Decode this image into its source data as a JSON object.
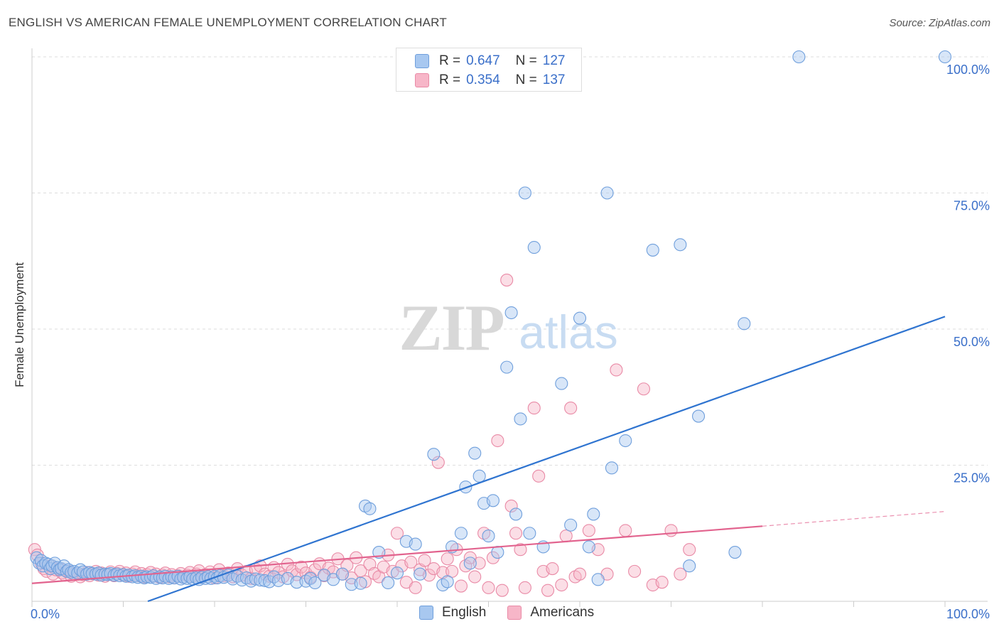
{
  "title": "ENGLISH VS AMERICAN FEMALE UNEMPLOYMENT CORRELATION CHART",
  "source": "Source: ZipAtlas.com",
  "legend_top": [
    {
      "r_label": "R =",
      "r_value": "0.647",
      "n_label": "N =",
      "n_value": "127"
    },
    {
      "r_label": "R =",
      "r_value": "0.354",
      "n_label": "N =",
      "n_value": "137"
    }
  ],
  "watermark": {
    "zip": "ZIP",
    "atlas": "atlas"
  },
  "colors": {
    "english_fill": "#a8c8f0",
    "english_stroke": "#6f9fdc",
    "english_line": "#2f74d0",
    "americans_fill": "#f7b6c8",
    "americans_stroke": "#e98aa6",
    "americans_line": "#e2638e",
    "axis_text": "#3a6fc9"
  },
  "chart_data": {
    "type": "scatter",
    "title": "ENGLISH VS AMERICAN FEMALE UNEMPLOYMENT CORRELATION CHART",
    "xlabel": "",
    "ylabel": "Female Unemployment",
    "xlim": [
      0,
      100
    ],
    "ylim": [
      0,
      100
    ],
    "x_tick_labels": [
      "0.0%",
      "100.0%"
    ],
    "y_tick_labels": [
      "25.0%",
      "50.0%",
      "75.0%",
      "100.0%"
    ],
    "y_ticks": [
      25,
      50,
      75,
      100
    ],
    "grid": "horizontal dashed",
    "legend_position": "bottom-center",
    "series": [
      {
        "name": "English",
        "r": 0.647,
        "n": 127,
        "trend": {
          "x": [
            0,
            100
          ],
          "y": [
            -7.6,
            52.3
          ]
        },
        "points": [
          [
            0.5,
            8
          ],
          [
            0.8,
            7
          ],
          [
            1,
            7.5
          ],
          [
            1.2,
            6.5
          ],
          [
            1.5,
            7
          ],
          [
            1.8,
            6.8
          ],
          [
            2,
            6
          ],
          [
            2.2,
            6.5
          ],
          [
            2.5,
            7
          ],
          [
            2.8,
            6.2
          ],
          [
            3,
            5.8
          ],
          [
            3.2,
            6
          ],
          [
            3.5,
            6.5
          ],
          [
            3.8,
            5.5
          ],
          [
            4,
            5.8
          ],
          [
            4.3,
            5.3
          ],
          [
            4.6,
            5.5
          ],
          [
            5,
            5.2
          ],
          [
            5.3,
            5.8
          ],
          [
            5.6,
            5.4
          ],
          [
            6,
            5
          ],
          [
            6.3,
            5.3
          ],
          [
            6.6,
            5.1
          ],
          [
            7,
            5
          ],
          [
            7.3,
            5.2
          ],
          [
            7.6,
            4.8
          ],
          [
            8,
            5
          ],
          [
            8.3,
            4.9
          ],
          [
            8.6,
            5.1
          ],
          [
            9,
            4.8
          ],
          [
            9.3,
            5
          ],
          [
            9.6,
            4.7
          ],
          [
            10,
            4.9
          ],
          [
            10.3,
            4.6
          ],
          [
            10.6,
            4.8
          ],
          [
            11,
            4.5
          ],
          [
            11.3,
            4.7
          ],
          [
            11.6,
            4.4
          ],
          [
            12,
            4.6
          ],
          [
            12.3,
            4.3
          ],
          [
            12.6,
            4.5
          ],
          [
            13,
            4.4
          ],
          [
            13.3,
            4.7
          ],
          [
            13.6,
            4.2
          ],
          [
            14,
            4.5
          ],
          [
            14.3,
            4.3
          ],
          [
            14.6,
            4.6
          ],
          [
            15,
            4.2
          ],
          [
            15.3,
            4.5
          ],
          [
            15.6,
            4.3
          ],
          [
            16,
            4.6
          ],
          [
            16.3,
            4.1
          ],
          [
            16.6,
            4.4
          ],
          [
            17,
            4.2
          ],
          [
            17.3,
            4.5
          ],
          [
            17.6,
            4.1
          ],
          [
            18,
            4.3
          ],
          [
            18.3,
            4
          ],
          [
            18.6,
            4.4
          ],
          [
            19,
            4.2
          ],
          [
            19.3,
            4.5
          ],
          [
            19.6,
            4.2
          ],
          [
            20,
            4.6
          ],
          [
            20.3,
            4.3
          ],
          [
            20.6,
            4.7
          ],
          [
            21,
            4.4
          ],
          [
            21.5,
            4.8
          ],
          [
            22,
            4.1
          ],
          [
            22.5,
            4.6
          ],
          [
            23,
            3.9
          ],
          [
            23.5,
            4.3
          ],
          [
            24,
            3.7
          ],
          [
            24.5,
            4.1
          ],
          [
            25,
            3.9
          ],
          [
            25.5,
            3.8
          ],
          [
            26,
            3.6
          ],
          [
            26.5,
            4.5
          ],
          [
            27,
            3.8
          ],
          [
            28,
            4.2
          ],
          [
            29,
            3.5
          ],
          [
            30,
            3.7
          ],
          [
            30.5,
            4.2
          ],
          [
            31,
            3.4
          ],
          [
            32,
            4.8
          ],
          [
            33,
            4
          ],
          [
            34,
            5
          ],
          [
            35,
            3.1
          ],
          [
            36,
            3.3
          ],
          [
            36.5,
            17.5
          ],
          [
            37,
            17
          ],
          [
            38,
            9
          ],
          [
            39,
            3.4
          ],
          [
            40,
            5.2
          ],
          [
            41,
            11
          ],
          [
            42,
            10.5
          ],
          [
            42.5,
            5
          ],
          [
            44,
            27
          ],
          [
            45,
            3
          ],
          [
            45.5,
            3.6
          ],
          [
            46,
            10
          ],
          [
            47,
            12.5
          ],
          [
            47.5,
            21
          ],
          [
            48,
            7
          ],
          [
            48.5,
            27.2
          ],
          [
            49,
            23
          ],
          [
            49.5,
            18
          ],
          [
            50,
            12
          ],
          [
            50.5,
            18.5
          ],
          [
            51,
            9
          ],
          [
            52,
            43
          ],
          [
            52.5,
            53
          ],
          [
            53,
            16
          ],
          [
            53.5,
            33.5
          ],
          [
            54,
            75
          ],
          [
            54.5,
            12.5
          ],
          [
            55,
            65
          ],
          [
            56,
            10
          ],
          [
            58,
            40
          ],
          [
            59,
            14
          ],
          [
            60,
            52
          ],
          [
            61,
            10
          ],
          [
            61.5,
            16
          ],
          [
            62,
            4
          ],
          [
            63,
            75
          ],
          [
            63.5,
            24.5
          ],
          [
            65,
            29.5
          ],
          [
            68,
            64.5
          ],
          [
            71,
            65.5
          ],
          [
            72,
            6.5
          ],
          [
            73,
            34
          ],
          [
            77,
            9
          ],
          [
            78,
            51
          ],
          [
            84,
            100
          ],
          [
            100,
            100
          ]
        ]
      },
      {
        "name": "Americans",
        "r": 0.354,
        "n": 137,
        "trend": {
          "x": [
            0,
            80
          ],
          "y": [
            3.3,
            13.8
          ]
        },
        "trend_dashed": {
          "x": [
            80,
            100
          ],
          "y": [
            13.8,
            16.5
          ]
        },
        "points": [
          [
            0.3,
            9.5
          ],
          [
            0.6,
            8.5
          ],
          [
            1,
            7
          ],
          [
            1.3,
            6
          ],
          [
            1.6,
            5.5
          ],
          [
            2,
            6.5
          ],
          [
            2.3,
            5
          ],
          [
            2.6,
            5.8
          ],
          [
            3,
            6
          ],
          [
            3.3,
            5.2
          ],
          [
            3.6,
            4.8
          ],
          [
            4,
            5.5
          ],
          [
            4.3,
            4.6
          ],
          [
            4.6,
            5
          ],
          [
            5,
            5.2
          ],
          [
            5.3,
            4.5
          ],
          [
            5.6,
            4.9
          ],
          [
            6,
            5.3
          ],
          [
            6.3,
            4.7
          ],
          [
            6.6,
            5.1
          ],
          [
            7,
            5.5
          ],
          [
            7.3,
            4.8
          ],
          [
            7.6,
            5.2
          ],
          [
            8,
            4.6
          ],
          [
            8.3,
            5
          ],
          [
            8.6,
            5.4
          ],
          [
            9,
            4.7
          ],
          [
            9.3,
            5.1
          ],
          [
            9.6,
            5.5
          ],
          [
            10,
            4.8
          ],
          [
            10.3,
            5.2
          ],
          [
            10.6,
            4.6
          ],
          [
            11,
            5
          ],
          [
            11.3,
            5.4
          ],
          [
            11.6,
            4.7
          ],
          [
            12,
            5.1
          ],
          [
            12.3,
            4.5
          ],
          [
            12.6,
            4.9
          ],
          [
            13,
            5.3
          ],
          [
            13.3,
            4.6
          ],
          [
            13.6,
            5
          ],
          [
            14,
            4.4
          ],
          [
            14.3,
            4.8
          ],
          [
            14.6,
            5.2
          ],
          [
            15,
            4.5
          ],
          [
            15.3,
            4.9
          ],
          [
            15.6,
            4.3
          ],
          [
            16,
            4.7
          ],
          [
            16.3,
            5.1
          ],
          [
            16.6,
            4.4
          ],
          [
            17,
            4.8
          ],
          [
            17.3,
            5.3
          ],
          [
            17.6,
            4.6
          ],
          [
            18,
            5
          ],
          [
            18.3,
            5.6
          ],
          [
            18.6,
            4.5
          ],
          [
            19,
            4.9
          ],
          [
            19.5,
            5.4
          ],
          [
            20,
            4.3
          ],
          [
            20.5,
            5.8
          ],
          [
            21,
            4.7
          ],
          [
            21.5,
            5.2
          ],
          [
            22,
            4.5
          ],
          [
            22.5,
            6
          ],
          [
            23,
            4.8
          ],
          [
            23.5,
            5.5
          ],
          [
            24,
            4.2
          ],
          [
            24.5,
            5.9
          ],
          [
            25,
            6.5
          ],
          [
            25.5,
            5
          ],
          [
            26,
            4.6
          ],
          [
            26.5,
            6.2
          ],
          [
            27,
            5.3
          ],
          [
            27.5,
            4.5
          ],
          [
            28,
            6.8
          ],
          [
            28.5,
            5.6
          ],
          [
            29,
            4.9
          ],
          [
            29.5,
            6.3
          ],
          [
            30,
            5.2
          ],
          [
            30.5,
            4.4
          ],
          [
            31,
            5.8
          ],
          [
            31.5,
            6.9
          ],
          [
            32,
            4.7
          ],
          [
            32.5,
            6.1
          ],
          [
            33,
            5.4
          ],
          [
            33.5,
            7.8
          ],
          [
            34,
            5
          ],
          [
            34.5,
            6.6
          ],
          [
            35,
            4.3
          ],
          [
            35.5,
            8
          ],
          [
            36,
            5.6
          ],
          [
            36.5,
            3.6
          ],
          [
            37,
            6.8
          ],
          [
            37.5,
            5.1
          ],
          [
            38,
            4.5
          ],
          [
            38.5,
            6.3
          ],
          [
            39,
            8.5
          ],
          [
            39.5,
            5.5
          ],
          [
            40,
            12.5
          ],
          [
            40.5,
            6.5
          ],
          [
            41,
            3.5
          ],
          [
            41.5,
            7.2
          ],
          [
            42,
            2.5
          ],
          [
            42.5,
            5.8
          ],
          [
            43,
            7.5
          ],
          [
            43.5,
            4.8
          ],
          [
            44,
            6
          ],
          [
            44.5,
            25.5
          ],
          [
            45,
            5.3
          ],
          [
            45.5,
            7.8
          ],
          [
            46,
            5.5
          ],
          [
            46.5,
            9.5
          ],
          [
            47,
            2.8
          ],
          [
            47.5,
            6.5
          ],
          [
            48,
            8
          ],
          [
            48.5,
            4.5
          ],
          [
            49,
            7
          ],
          [
            49.5,
            12.5
          ],
          [
            50,
            2.5
          ],
          [
            50.5,
            8
          ],
          [
            51,
            29.5
          ],
          [
            51.5,
            2
          ],
          [
            52,
            59
          ],
          [
            52.5,
            17.5
          ],
          [
            53,
            12.5
          ],
          [
            53.5,
            9.5
          ],
          [
            54,
            2.5
          ],
          [
            55,
            35.5
          ],
          [
            55.5,
            23
          ],
          [
            56,
            5.5
          ],
          [
            56.5,
            2
          ],
          [
            57,
            6
          ],
          [
            58,
            3
          ],
          [
            58.5,
            12
          ],
          [
            59,
            35.5
          ],
          [
            59.5,
            4.5
          ],
          [
            60,
            5
          ],
          [
            61,
            13
          ],
          [
            62,
            9.5
          ],
          [
            63,
            5
          ],
          [
            64,
            42.5
          ],
          [
            65,
            13
          ],
          [
            66,
            5.5
          ],
          [
            67,
            39
          ],
          [
            68,
            3
          ],
          [
            69,
            3.5
          ],
          [
            70,
            13
          ],
          [
            71,
            5
          ],
          [
            72,
            9.5
          ]
        ]
      }
    ]
  }
}
